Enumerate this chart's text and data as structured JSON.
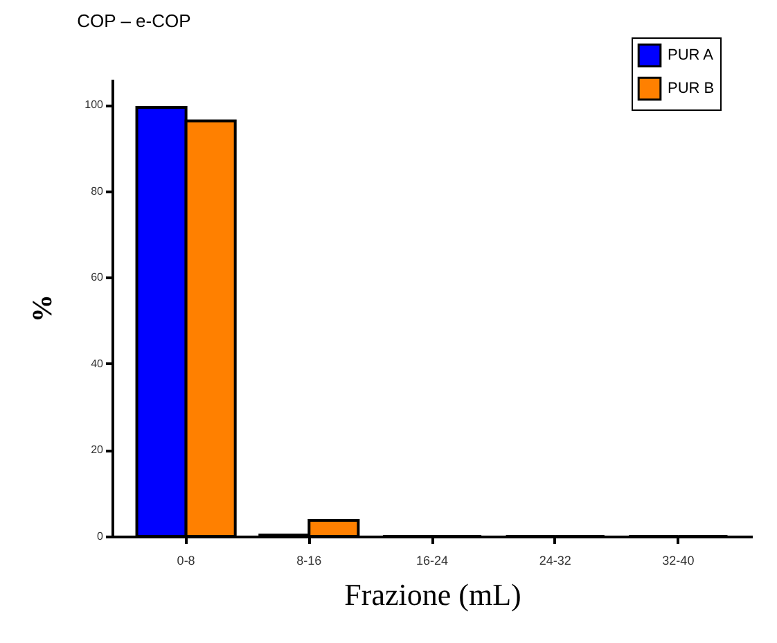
{
  "chart_data": {
    "type": "bar",
    "title": "COP – e-COP",
    "xlabel": "Frazione (mL)",
    "ylabel": "%",
    "categories": [
      "0-8",
      "8-16",
      "16-24",
      "24-32",
      "32-40"
    ],
    "series": [
      {
        "name": "PUR A",
        "color": "#0000ff",
        "values": [
          99.4,
          0.3,
          0,
          0,
          0
        ]
      },
      {
        "name": "PUR B",
        "color": "#ff8000",
        "values": [
          96.3,
          3.7,
          0,
          0,
          0
        ]
      }
    ],
    "ylim": [
      0,
      106
    ],
    "yticks": [
      0,
      20,
      40,
      60,
      80,
      100
    ],
    "grid": false,
    "legend": "top right"
  }
}
